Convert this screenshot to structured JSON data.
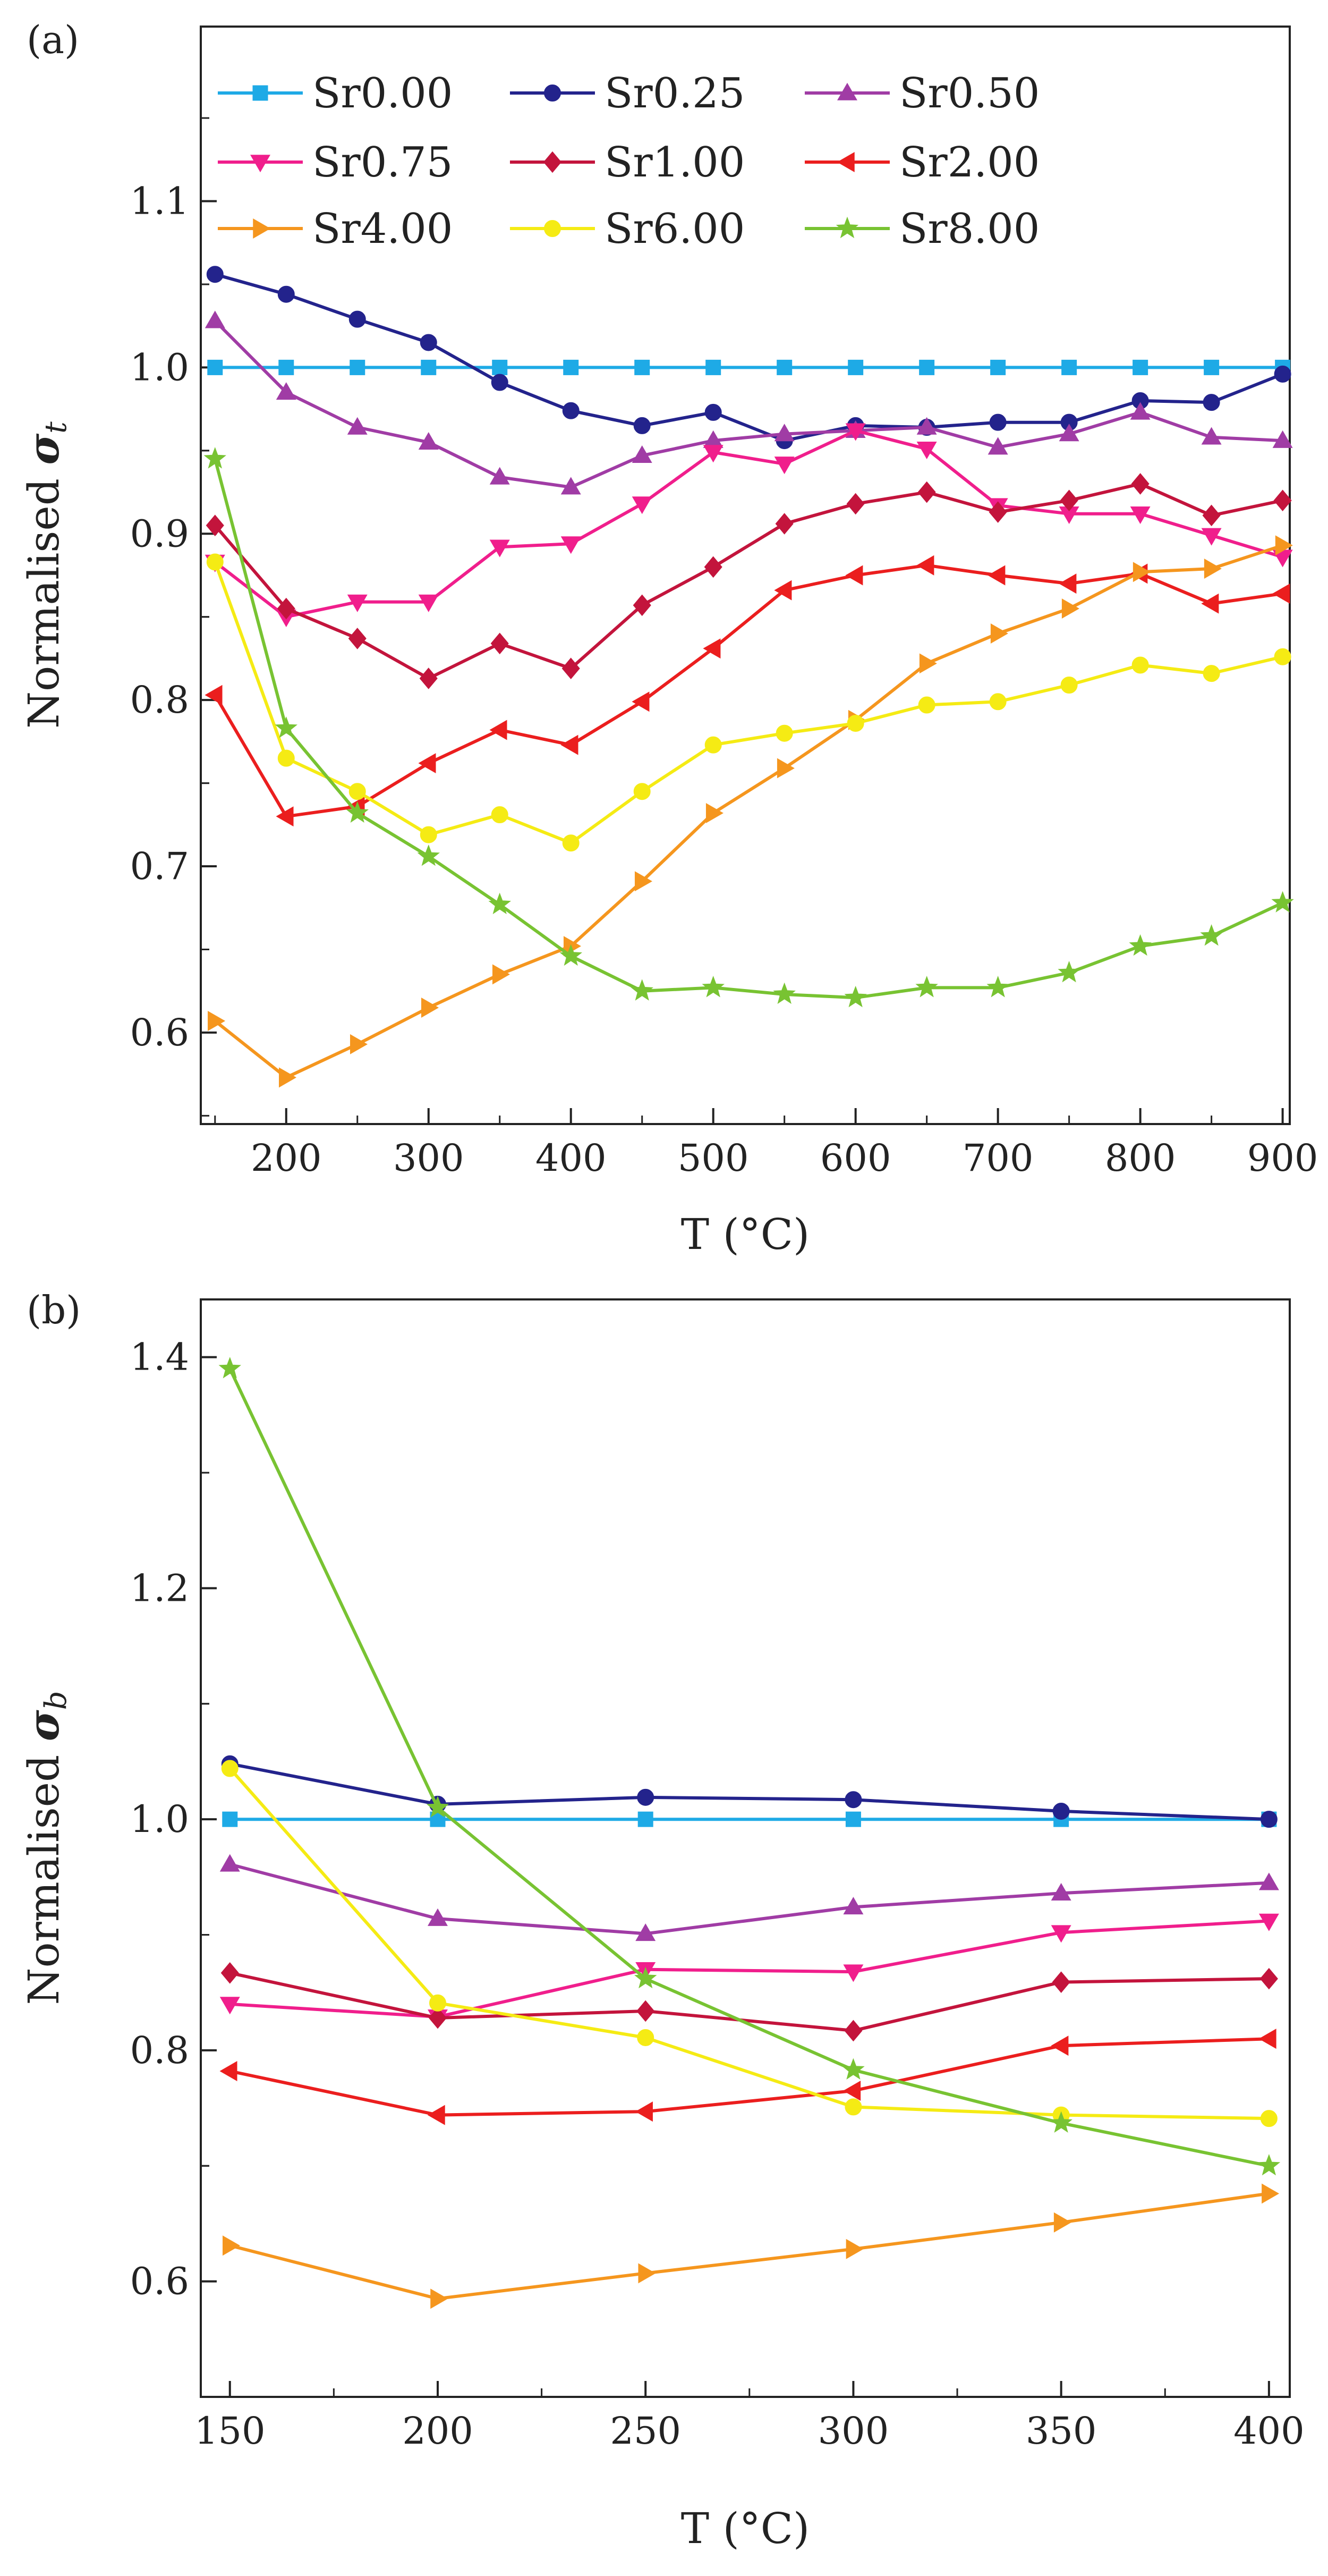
{
  "chart_data": [
    {
      "panel": "(a)",
      "type": "line",
      "xlabel": "T (°C)",
      "ylabel_prefix": "Normalised ",
      "ylabel_symbol": "σ",
      "ylabel_sub": "t",
      "xlim": [
        140,
        905
      ],
      "ylim": [
        0.545,
        1.205
      ],
      "xticks": [
        200,
        300,
        400,
        500,
        600,
        700,
        800,
        900
      ],
      "yticks": [
        0.6,
        0.7,
        0.8,
        0.9,
        1.0,
        1.1
      ],
      "ytick_labels": [
        "0.6",
        "0.7",
        "0.8",
        "0.9",
        "1.0",
        "1.1"
      ],
      "legend_position": "top-right, 3 columns",
      "x": [
        150,
        200,
        250,
        300,
        350,
        400,
        450,
        500,
        550,
        600,
        650,
        700,
        750,
        800,
        850,
        900
      ],
      "series": [
        {
          "name": "Sr0.00",
          "color": "#1EAAE6",
          "marker": "square",
          "values": [
            1.0,
            1.0,
            1.0,
            1.0,
            1.0,
            1.0,
            1.0,
            1.0,
            1.0,
            1.0,
            1.0,
            1.0,
            1.0,
            1.0,
            1.0,
            1.0
          ]
        },
        {
          "name": "Sr0.25",
          "color": "#23238C",
          "marker": "circle",
          "values": [
            1.056,
            1.044,
            1.029,
            1.015,
            0.991,
            0.974,
            0.965,
            0.973,
            0.956,
            0.965,
            0.964,
            0.967,
            0.967,
            0.98,
            0.979,
            0.996
          ]
        },
        {
          "name": "Sr0.50",
          "color": "#A03CA5",
          "marker": "triangle-up",
          "values": [
            1.028,
            0.985,
            0.964,
            0.955,
            0.934,
            0.928,
            0.947,
            0.956,
            0.96,
            0.962,
            0.964,
            0.952,
            0.96,
            0.973,
            0.958,
            0.956
          ]
        },
        {
          "name": "Sr0.75",
          "color": "#F01E8C",
          "marker": "triangle-down",
          "values": [
            0.883,
            0.85,
            0.859,
            0.859,
            0.892,
            0.894,
            0.918,
            0.949,
            0.942,
            0.962,
            0.951,
            0.917,
            0.912,
            0.912,
            0.899,
            0.886
          ]
        },
        {
          "name": "Sr1.00",
          "color": "#C3143C",
          "marker": "diamond",
          "values": [
            0.905,
            0.855,
            0.837,
            0.813,
            0.834,
            0.819,
            0.857,
            0.88,
            0.906,
            0.918,
            0.925,
            0.913,
            0.92,
            0.93,
            0.911,
            0.92
          ]
        },
        {
          "name": "Sr2.00",
          "color": "#EB1E1E",
          "marker": "triangle-left",
          "values": [
            0.803,
            0.73,
            0.736,
            0.762,
            0.782,
            0.773,
            0.799,
            0.831,
            0.866,
            0.875,
            0.881,
            0.875,
            0.87,
            0.876,
            0.858,
            0.864
          ]
        },
        {
          "name": "Sr4.00",
          "color": "#F5961E",
          "marker": "triangle-right",
          "values": [
            0.607,
            0.573,
            0.593,
            0.615,
            0.635,
            0.652,
            0.691,
            0.732,
            0.759,
            0.788,
            0.822,
            0.84,
            0.855,
            0.877,
            0.879,
            0.893
          ]
        },
        {
          "name": "Sr6.00",
          "color": "#F5EB14",
          "marker": "circle",
          "values": [
            0.883,
            0.765,
            0.745,
            0.719,
            0.731,
            0.714,
            0.745,
            0.773,
            0.78,
            0.786,
            0.797,
            0.799,
            0.809,
            0.821,
            0.816,
            0.826
          ]
        },
        {
          "name": "Sr8.00",
          "color": "#78C332",
          "marker": "star",
          "values": [
            0.945,
            0.783,
            0.732,
            0.706,
            0.677,
            0.646,
            0.625,
            0.627,
            0.623,
            0.621,
            0.627,
            0.627,
            0.636,
            0.652,
            0.658,
            0.678
          ]
        }
      ]
    },
    {
      "panel": "(b)",
      "type": "line",
      "xlabel": "T (°C)",
      "ylabel_prefix": "Normalised ",
      "ylabel_symbol": "σ",
      "ylabel_sub": "b",
      "xlim": [
        143,
        405
      ],
      "ylim": [
        0.5,
        1.45
      ],
      "xticks": [
        150,
        200,
        250,
        300,
        350,
        400
      ],
      "yticks": [
        0.6,
        0.8,
        1.0,
        1.2,
        1.4
      ],
      "ytick_labels": [
        "0.6",
        "0.8",
        "1.0",
        "1.2",
        "1.4"
      ],
      "legend_position": "none",
      "x": [
        150,
        200,
        250,
        300,
        350,
        400
      ],
      "series": [
        {
          "name": "Sr0.00",
          "color": "#1EAAE6",
          "marker": "square",
          "values": [
            1.0,
            1.0,
            1.0,
            1.0,
            1.0,
            1.0
          ]
        },
        {
          "name": "Sr0.25",
          "color": "#23238C",
          "marker": "circle",
          "values": [
            1.048,
            1.013,
            1.019,
            1.017,
            1.007,
            1.0
          ]
        },
        {
          "name": "Sr0.50",
          "color": "#A03CA5",
          "marker": "triangle-up",
          "values": [
            0.961,
            0.914,
            0.901,
            0.924,
            0.936,
            0.945
          ]
        },
        {
          "name": "Sr0.75",
          "color": "#F01E8C",
          "marker": "triangle-down",
          "values": [
            0.84,
            0.829,
            0.87,
            0.868,
            0.902,
            0.912
          ]
        },
        {
          "name": "Sr1.00",
          "color": "#C3143C",
          "marker": "diamond",
          "values": [
            0.867,
            0.828,
            0.834,
            0.817,
            0.859,
            0.862
          ]
        },
        {
          "name": "Sr2.00",
          "color": "#EB1E1E",
          "marker": "triangle-left",
          "values": [
            0.782,
            0.744,
            0.747,
            0.765,
            0.804,
            0.81
          ]
        },
        {
          "name": "Sr4.00",
          "color": "#F5961E",
          "marker": "triangle-right",
          "values": [
            0.631,
            0.585,
            0.607,
            0.628,
            0.651,
            0.676
          ]
        },
        {
          "name": "Sr6.00",
          "color": "#F5EB14",
          "marker": "circle",
          "values": [
            1.044,
            0.841,
            0.811,
            0.751,
            0.744,
            0.741
          ]
        },
        {
          "name": "Sr8.00",
          "color": "#78C332",
          "marker": "star",
          "values": [
            1.39,
            1.01,
            0.862,
            0.783,
            0.737,
            0.7
          ]
        }
      ]
    }
  ]
}
